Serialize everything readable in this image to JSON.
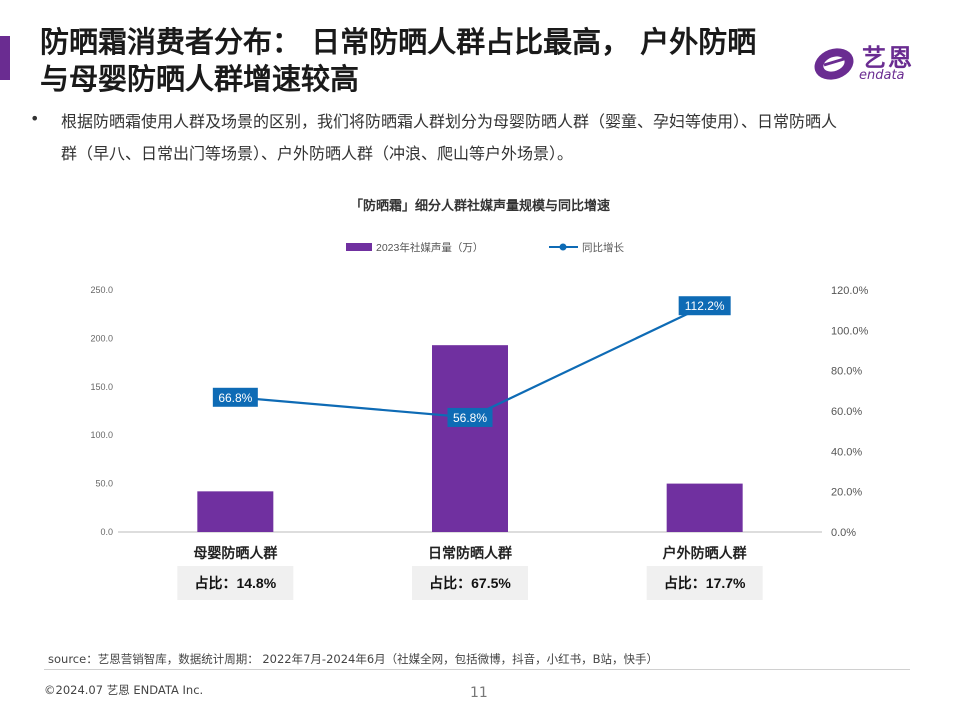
{
  "page": {
    "title": "防晒霜消费者分布： 日常防晒人群占比最高， 户外防晒与母婴防晒人群增速较高",
    "bullet": "•",
    "description": "根据防晒霜使用人群及场景的区别，我们将防晒霜人群划分为母婴防晒人群（婴童、孕妇等使用）、日常防晒人群（早八、日常出门等场景）、户外防晒人群（冲浪、爬山等户外场景）。",
    "source": "source：艺恩营销智库，数据统计周期： 2022年7月-2024年6月（社媒全网，包括微博，抖音，小红书，B站，快手）",
    "copyright": "©2024.07  艺恩 ENDATA Inc.",
    "page_number": "11"
  },
  "logo": {
    "cn": "艺恩",
    "en": "endata"
  },
  "colors": {
    "accent": "#6a2c91",
    "bar": "#7030a0",
    "line": "#0e6bb5",
    "share_box": "#f0f0f0"
  },
  "chart_data": {
    "type": "bar",
    "title": "「防晒霜」细分人群社媒声量规模与同比增速",
    "categories": [
      "母婴防晒人群",
      "日常防晒人群",
      "户外防晒人群"
    ],
    "series": [
      {
        "name": "2023年社媒声量（万）",
        "type": "bar",
        "axis": "left",
        "values": [
          42,
          193,
          50
        ]
      },
      {
        "name": "同比增长",
        "type": "line",
        "axis": "right",
        "values": [
          66.8,
          56.8,
          112.2
        ]
      }
    ],
    "line_labels": [
      "66.8%",
      "56.8%",
      "112.2%"
    ],
    "left_axis": {
      "range": [
        0,
        250
      ],
      "ticks": [
        "0.0",
        "50.0",
        "100.0",
        "150.0",
        "200.0",
        "250.0"
      ]
    },
    "right_axis": {
      "range": [
        0,
        120
      ],
      "ticks": [
        "0.0%",
        "20.0%",
        "40.0%",
        "60.0%",
        "80.0%",
        "100.0%",
        "120.0%"
      ]
    },
    "shares": [
      "占比：14.8%",
      "占比：67.5%",
      "占比：17.7%"
    ],
    "legend_position": "top",
    "grid": false
  }
}
